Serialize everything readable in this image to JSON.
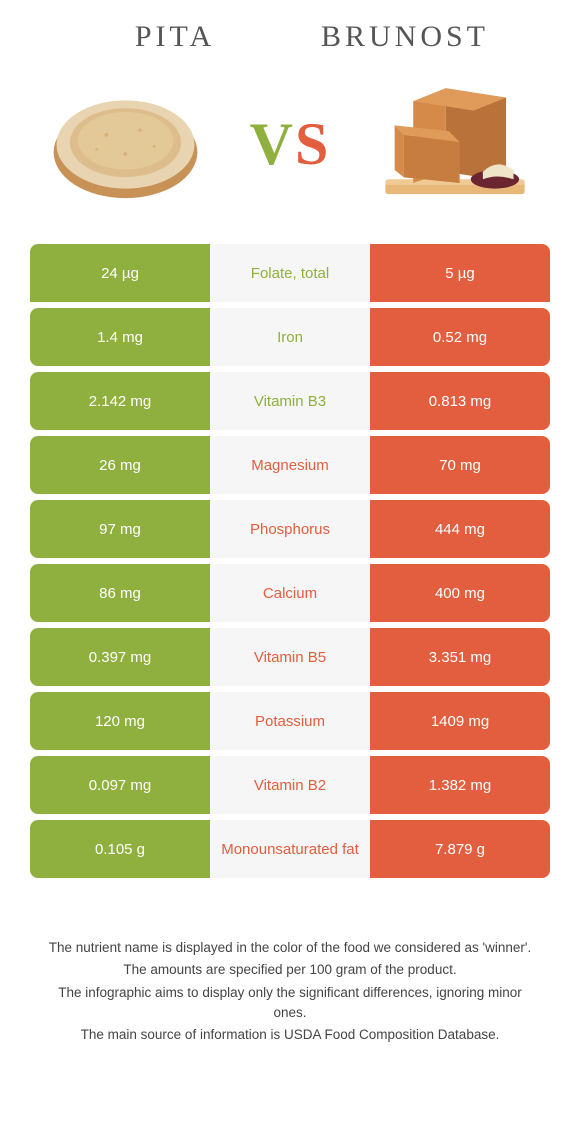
{
  "header": {
    "left_title": "Pita",
    "right_title": "Brunost",
    "vs_v": "V",
    "vs_s": "S"
  },
  "colors": {
    "pita": "#8fb03e",
    "brunost": "#e35d3f",
    "mid_bg": "#f6f6f6",
    "cell_text": "#ffffff"
  },
  "rows": [
    {
      "left": "24 µg",
      "label": "Folate, total",
      "right": "5 µg",
      "winner": "pita"
    },
    {
      "left": "1.4 mg",
      "label": "Iron",
      "right": "0.52 mg",
      "winner": "pita"
    },
    {
      "left": "2.142 mg",
      "label": "Vitamin B3",
      "right": "0.813 mg",
      "winner": "pita"
    },
    {
      "left": "26 mg",
      "label": "Magnesium",
      "right": "70 mg",
      "winner": "brunost"
    },
    {
      "left": "97 mg",
      "label": "Phosphorus",
      "right": "444 mg",
      "winner": "brunost"
    },
    {
      "left": "86 mg",
      "label": "Calcium",
      "right": "400 mg",
      "winner": "brunost"
    },
    {
      "left": "0.397 mg",
      "label": "Vitamin B5",
      "right": "3.351 mg",
      "winner": "brunost"
    },
    {
      "left": "120 mg",
      "label": "Potassium",
      "right": "1409 mg",
      "winner": "brunost"
    },
    {
      "left": "0.097 mg",
      "label": "Vitamin B2",
      "right": "1.382 mg",
      "winner": "brunost"
    },
    {
      "left": "0.105 g",
      "label": "Monounsaturated fat",
      "right": "7.879 g",
      "winner": "brunost"
    }
  ],
  "footer": {
    "line1": "The nutrient name is displayed in the color of the food we considered as 'winner'.",
    "line2": "The amounts are specified per 100 gram of the product.",
    "line3": "The infographic aims to display only the significant differences, ignoring minor ones.",
    "line4": "The main source of information is USDA Food Composition Database."
  }
}
